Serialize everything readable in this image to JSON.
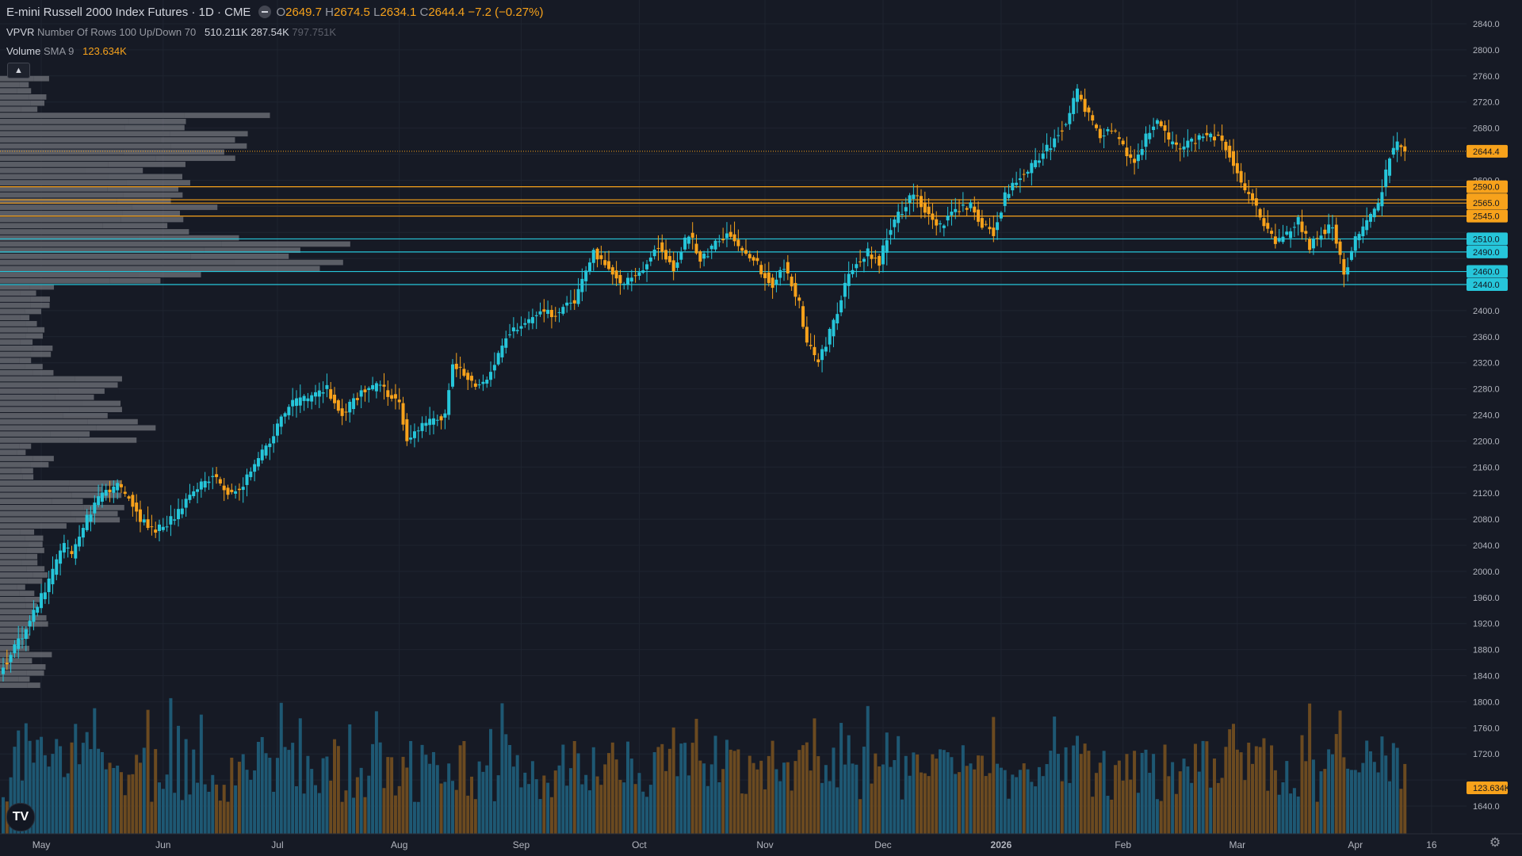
{
  "legend": {
    "title": "E-mini Russell 2000 Index Futures · 1D · CME",
    "o_label": "O",
    "o_value": "2649.7",
    "h_label": "H",
    "h_value": "2674.5",
    "l_label": "L",
    "l_value": "2634.1",
    "c_label": "C",
    "c_value": "2644.4",
    "change": "−7.2 (−0.27%)",
    "vpvr_name": "VPVR",
    "vpvr_params": "Number Of Rows 100 Up/Down 70",
    "vpvr_v1": "510.211K",
    "vpvr_v2": "287.54K",
    "vpvr_v3": "797.751K",
    "vol_name": "Volume",
    "vol_params": "SMA 9",
    "vol_value": "123.634K",
    "collapse_icon": "chevron-up-icon"
  },
  "logo_text": "TV",
  "colors": {
    "background": "#161a25",
    "up": "#26c6da",
    "down": "#f7a21b",
    "vol_up": "#1e5873",
    "vol_down": "#6b4a20",
    "profile": "#5a5d65",
    "profile_hi": "#8a8c92",
    "grid": "#1f2430",
    "axis_text": "#b2b5be"
  },
  "chart_data": {
    "type": "candlestick",
    "ylim": [
      1620,
      2860
    ],
    "y_ticks": [
      "2840.0",
      "2800.0",
      "2760.0",
      "2720.0",
      "2680.0",
      "2600.0",
      "2400.0",
      "2360.0",
      "2320.0",
      "2280.0",
      "2240.0",
      "2200.0",
      "2160.0",
      "2120.0",
      "2080.0",
      "2040.0",
      "2000.0",
      "1960.0",
      "1920.0",
      "1880.0",
      "1840.0",
      "1800.0",
      "1760.0",
      "1720.0",
      "1640.0"
    ],
    "x_labels": [
      {
        "label": "May",
        "day": 10
      },
      {
        "label": "Jun",
        "day": 42
      },
      {
        "label": "Jul",
        "day": 72
      },
      {
        "label": "Aug",
        "day": 104
      },
      {
        "label": "Sep",
        "day": 136
      },
      {
        "label": "Oct",
        "day": 167
      },
      {
        "label": "Nov",
        "day": 200
      },
      {
        "label": "Dec",
        "day": 231
      },
      {
        "label": "2026",
        "day": 262
      },
      {
        "label": "Feb",
        "day": 294
      },
      {
        "label": "Mar",
        "day": 324
      },
      {
        "label": "Apr",
        "day": 355
      },
      {
        "label": "16",
        "day": 375
      }
    ],
    "last_price": "2644.4",
    "last_volume": "123.634K",
    "levels": [
      {
        "price": 2590.0,
        "label": "2590.0",
        "color": "#f7a21b"
      },
      {
        "price": 2570.0,
        "label": "2570.0",
        "color": "#f7a21b"
      },
      {
        "price": 2565.0,
        "label": "2565.0",
        "color": "#f7a21b"
      },
      {
        "price": 2545.0,
        "label": "2545.0",
        "color": "#f7a21b"
      },
      {
        "price": 2510.0,
        "label": "2510.0",
        "color": "#26c6da"
      },
      {
        "price": 2490.0,
        "label": "2490.0",
        "color": "#26c6da"
      },
      {
        "price": 2460.0,
        "label": "2460.0",
        "color": "#26c6da"
      },
      {
        "price": 2440.0,
        "label": "2440.0",
        "color": "#26c6da"
      }
    ],
    "pivots": [
      [
        0,
        1855
      ],
      [
        5,
        1900
      ],
      [
        12,
        1985
      ],
      [
        16,
        2040
      ],
      [
        18,
        2020
      ],
      [
        22,
        2080
      ],
      [
        26,
        2120
      ],
      [
        30,
        2130
      ],
      [
        33,
        2115
      ],
      [
        36,
        2080
      ],
      [
        40,
        2060
      ],
      [
        45,
        2085
      ],
      [
        50,
        2120
      ],
      [
        55,
        2150
      ],
      [
        60,
        2115
      ],
      [
        65,
        2150
      ],
      [
        70,
        2200
      ],
      [
        75,
        2255
      ],
      [
        80,
        2265
      ],
      [
        85,
        2280
      ],
      [
        89,
        2240
      ],
      [
        94,
        2275
      ],
      [
        99,
        2285
      ],
      [
        104,
        2255
      ],
      [
        106,
        2205
      ],
      [
        111,
        2225
      ],
      [
        116,
        2240
      ],
      [
        118,
        2320
      ],
      [
        124,
        2285
      ],
      [
        127,
        2290
      ],
      [
        132,
        2360
      ],
      [
        137,
        2380
      ],
      [
        141,
        2400
      ],
      [
        145,
        2395
      ],
      [
        150,
        2415
      ],
      [
        155,
        2490
      ],
      [
        159,
        2470
      ],
      [
        162,
        2440
      ],
      [
        167,
        2460
      ],
      [
        172,
        2500
      ],
      [
        176,
        2465
      ],
      [
        180,
        2520
      ],
      [
        183,
        2480
      ],
      [
        186,
        2495
      ],
      [
        190,
        2520
      ],
      [
        193,
        2500
      ],
      [
        198,
        2470
      ],
      [
        202,
        2440
      ],
      [
        205,
        2470
      ],
      [
        209,
        2410
      ],
      [
        211,
        2350
      ],
      [
        214,
        2320
      ],
      [
        218,
        2380
      ],
      [
        222,
        2460
      ],
      [
        227,
        2490
      ],
      [
        230,
        2475
      ],
      [
        233,
        2530
      ],
      [
        236,
        2555
      ],
      [
        239,
        2580
      ],
      [
        242,
        2555
      ],
      [
        246,
        2530
      ],
      [
        250,
        2555
      ],
      [
        254,
        2560
      ],
      [
        257,
        2530
      ],
      [
        260,
        2520
      ],
      [
        263,
        2575
      ],
      [
        267,
        2605
      ],
      [
        271,
        2625
      ],
      [
        275,
        2655
      ],
      [
        279,
        2690
      ],
      [
        282,
        2735
      ],
      [
        285,
        2700
      ],
      [
        288,
        2670
      ],
      [
        291,
        2680
      ],
      [
        294,
        2650
      ],
      [
        297,
        2630
      ],
      [
        300,
        2665
      ],
      [
        303,
        2690
      ],
      [
        306,
        2660
      ],
      [
        309,
        2645
      ],
      [
        312,
        2660
      ],
      [
        316,
        2670
      ],
      [
        319,
        2665
      ],
      [
        322,
        2640
      ],
      [
        325,
        2595
      ],
      [
        328,
        2570
      ],
      [
        331,
        2530
      ],
      [
        334,
        2505
      ],
      [
        337,
        2515
      ],
      [
        340,
        2540
      ],
      [
        343,
        2500
      ],
      [
        346,
        2520
      ],
      [
        349,
        2530
      ],
      [
        352,
        2455
      ],
      [
        355,
        2510
      ],
      [
        358,
        2535
      ],
      [
        361,
        2560
      ],
      [
        364,
        2635
      ],
      [
        366,
        2655
      ],
      [
        368,
        2644.4
      ]
    ]
  }
}
